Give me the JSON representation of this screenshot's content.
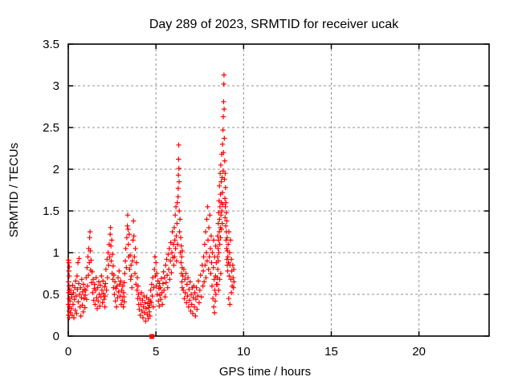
{
  "title": "Day 289 of 2023, SRMTID for receiver ucak",
  "colors": {
    "marker": "#ff0000",
    "grid": "#909090",
    "axis": "#000000",
    "background": "#ffffff"
  },
  "chart_data": {
    "type": "scatter",
    "title": "Day 289 of 2023, SRMTID for receiver ucak",
    "xlabel": "GPS time / hours",
    "ylabel": "SRMTID / TECUs",
    "xlim": [
      0,
      24
    ],
    "ylim": [
      0,
      3.5
    ],
    "xtick_values": [
      0,
      5,
      10,
      15,
      20
    ],
    "xtick_labels": [
      "0",
      "5",
      "10",
      "15",
      "20"
    ],
    "ytick_values": [
      0,
      0.5,
      1,
      1.5,
      2,
      2.5,
      3,
      3.5
    ],
    "ytick_labels": [
      "0",
      "0.5",
      "1",
      "1.5",
      "2",
      "2.5",
      "3",
      "3.5"
    ],
    "grid": true,
    "legend": "none",
    "marker": "plus",
    "square_points": [
      [
        4.77,
        0.0
      ]
    ],
    "points": [
      [
        0.01,
        0.25
      ],
      [
        0.01,
        0.38
      ],
      [
        0.02,
        0.52
      ],
      [
        0.02,
        0.65
      ],
      [
        0.03,
        0.78
      ],
      [
        0.03,
        0.88
      ],
      [
        0.04,
        0.3
      ],
      [
        0.04,
        0.45
      ],
      [
        0.05,
        0.6
      ],
      [
        0.05,
        0.72
      ],
      [
        0.06,
        0.83
      ],
      [
        0.06,
        0.22
      ],
      [
        0.07,
        0.35
      ],
      [
        0.07,
        0.55
      ],
      [
        0.02,
        0.91
      ],
      [
        0.1,
        0.42
      ],
      [
        0.12,
        0.28
      ],
      [
        0.15,
        0.55
      ],
      [
        0.17,
        0.33
      ],
      [
        0.2,
        0.47
      ],
      [
        0.22,
        0.25
      ],
      [
        0.25,
        0.61
      ],
      [
        0.27,
        0.38
      ],
      [
        0.3,
        0.52
      ],
      [
        0.32,
        0.22
      ],
      [
        0.35,
        0.44
      ],
      [
        0.37,
        0.58
      ],
      [
        0.4,
        0.31
      ],
      [
        0.42,
        0.66
      ],
      [
        0.45,
        0.48
      ],
      [
        0.47,
        0.27
      ],
      [
        0.5,
        0.72
      ],
      [
        0.52,
        0.56
      ],
      [
        0.55,
        0.88
      ],
      [
        0.57,
        0.41
      ],
      [
        0.6,
        0.63
      ],
      [
        0.62,
        0.93
      ],
      [
        0.65,
        0.5
      ],
      [
        0.67,
        0.35
      ],
      [
        0.7,
        0.58
      ],
      [
        0.72,
        0.24
      ],
      [
        0.75,
        0.46
      ],
      [
        0.77,
        0.68
      ],
      [
        0.8,
        0.37
      ],
      [
        0.82,
        0.53
      ],
      [
        0.85,
        0.29
      ],
      [
        0.87,
        0.62
      ],
      [
        0.9,
        0.45
      ],
      [
        0.92,
        0.56
      ],
      [
        0.95,
        0.34
      ],
      [
        0.97,
        0.49
      ],
      [
        1.0,
        0.55
      ],
      [
        1.02,
        0.7
      ],
      [
        1.05,
        0.44
      ],
      [
        1.07,
        0.82
      ],
      [
        1.1,
        0.6
      ],
      [
        1.12,
        0.95
      ],
      [
        1.15,
        0.73
      ],
      [
        1.17,
        1.05
      ],
      [
        1.2,
        0.88
      ],
      [
        1.22,
        1.18
      ],
      [
        1.24,
        1.25
      ],
      [
        1.26,
        1.02
      ],
      [
        1.28,
        0.79
      ],
      [
        1.3,
        0.91
      ],
      [
        1.33,
        0.64
      ],
      [
        1.36,
        0.77
      ],
      [
        1.39,
        0.52
      ],
      [
        1.42,
        0.68
      ],
      [
        1.45,
        0.43
      ],
      [
        1.48,
        0.57
      ],
      [
        1.5,
        0.62
      ],
      [
        1.53,
        0.38
      ],
      [
        1.56,
        0.55
      ],
      [
        1.59,
        0.7
      ],
      [
        1.62,
        0.46
      ],
      [
        1.65,
        0.33
      ],
      [
        1.68,
        0.58
      ],
      [
        1.71,
        0.42
      ],
      [
        1.74,
        0.65
      ],
      [
        1.77,
        0.5
      ],
      [
        1.8,
        0.36
      ],
      [
        1.83,
        0.61
      ],
      [
        1.86,
        0.47
      ],
      [
        1.89,
        0.72
      ],
      [
        1.92,
        0.55
      ],
      [
        1.95,
        0.4
      ],
      [
        1.98,
        0.66
      ],
      [
        2.01,
        0.51
      ],
      [
        2.04,
        0.44
      ],
      [
        2.07,
        0.59
      ],
      [
        2.09,
        0.35
      ],
      [
        2.1,
        0.48
      ],
      [
        2.12,
        0.63
      ],
      [
        2.15,
        0.8
      ],
      [
        2.18,
        0.55
      ],
      [
        2.21,
        0.92
      ],
      [
        2.24,
        0.7
      ],
      [
        2.27,
        1.0
      ],
      [
        2.3,
        0.85
      ],
      [
        2.33,
        1.1
      ],
      [
        2.36,
        0.95
      ],
      [
        2.39,
        1.22
      ],
      [
        2.41,
        1.3
      ],
      [
        2.43,
        1.08
      ],
      [
        2.45,
        0.9
      ],
      [
        2.48,
        1.15
      ],
      [
        2.5,
        0.75
      ],
      [
        2.52,
        0.98
      ],
      [
        2.54,
        0.68
      ],
      [
        2.56,
        0.84
      ],
      [
        2.58,
        0.58
      ],
      [
        2.6,
        0.73
      ],
      [
        2.63,
        0.5
      ],
      [
        2.66,
        0.65
      ],
      [
        2.69,
        0.42
      ],
      [
        2.72,
        0.57
      ],
      [
        2.75,
        0.35
      ],
      [
        2.78,
        0.6
      ],
      [
        2.81,
        0.46
      ],
      [
        2.84,
        0.7
      ],
      [
        2.87,
        0.53
      ],
      [
        2.9,
        0.78
      ],
      [
        2.93,
        0.62
      ],
      [
        2.96,
        0.48
      ],
      [
        2.99,
        0.66
      ],
      [
        3.02,
        0.38
      ],
      [
        3.05,
        0.55
      ],
      [
        3.08,
        0.43
      ],
      [
        3.11,
        0.6
      ],
      [
        3.14,
        0.35
      ],
      [
        3.16,
        0.52
      ],
      [
        3.18,
        0.47
      ],
      [
        3.19,
        0.64
      ],
      [
        3.2,
        0.41
      ],
      [
        3.22,
        0.75
      ],
      [
        3.25,
        0.9
      ],
      [
        3.28,
        1.05
      ],
      [
        3.31,
        0.82
      ],
      [
        3.34,
        1.18
      ],
      [
        3.37,
        1.32
      ],
      [
        3.39,
        1.45
      ],
      [
        3.41,
        1.28
      ],
      [
        3.43,
        1.1
      ],
      [
        3.45,
        0.95
      ],
      [
        3.47,
        1.22
      ],
      [
        3.5,
        0.8
      ],
      [
        3.53,
        0.97
      ],
      [
        3.56,
        0.68
      ],
      [
        3.58,
        0.85
      ],
      [
        3.6,
        0.72
      ],
      [
        3.63,
        0.58
      ],
      [
        3.66,
        0.9
      ],
      [
        3.69,
        1.15
      ],
      [
        3.72,
        1.38
      ],
      [
        3.74,
        1.2
      ],
      [
        3.77,
        0.95
      ],
      [
        3.8,
        0.75
      ],
      [
        3.83,
        1.05
      ],
      [
        3.86,
        0.62
      ],
      [
        3.89,
        0.88
      ],
      [
        3.92,
        0.55
      ],
      [
        3.94,
        0.7
      ],
      [
        3.96,
        0.45
      ],
      [
        3.98,
        0.6
      ],
      [
        4.0,
        0.5
      ],
      [
        4.02,
        0.38
      ],
      [
        4.05,
        0.32
      ],
      [
        4.08,
        0.45
      ],
      [
        4.11,
        0.25
      ],
      [
        4.14,
        0.38
      ],
      [
        4.17,
        0.52
      ],
      [
        4.2,
        0.3
      ],
      [
        4.23,
        0.43
      ],
      [
        4.26,
        0.22
      ],
      [
        4.29,
        0.35
      ],
      [
        4.32,
        0.48
      ],
      [
        4.35,
        0.28
      ],
      [
        4.38,
        0.4
      ],
      [
        4.41,
        0.18
      ],
      [
        4.44,
        0.33
      ],
      [
        4.47,
        0.46
      ],
      [
        4.5,
        0.26
      ],
      [
        4.53,
        0.39
      ],
      [
        4.56,
        0.21
      ],
      [
        4.58,
        0.34
      ],
      [
        4.6,
        0.44
      ],
      [
        4.62,
        0.29
      ],
      [
        4.64,
        0.37
      ],
      [
        4.66,
        0.24
      ],
      [
        4.68,
        0.42
      ],
      [
        4.7,
        0.55
      ],
      [
        4.73,
        0.4
      ],
      [
        4.76,
        0.62
      ],
      [
        4.79,
        0.48
      ],
      [
        4.82,
        0.7
      ],
      [
        4.85,
        0.35
      ],
      [
        4.88,
        0.58
      ],
      [
        4.91,
        0.8
      ],
      [
        4.94,
        0.95
      ],
      [
        4.97,
        0.72
      ],
      [
        5.0,
        0.88
      ],
      [
        5.02,
        0.6
      ],
      [
        5.05,
        0.75
      ],
      [
        5.08,
        0.5
      ],
      [
        5.11,
        0.66
      ],
      [
        5.14,
        0.42
      ],
      [
        5.17,
        0.57
      ],
      [
        5.19,
        0.36
      ],
      [
        5.2,
        0.63
      ],
      [
        5.22,
        0.49
      ],
      [
        5.25,
        0.58
      ],
      [
        5.28,
        0.44
      ],
      [
        5.31,
        0.69
      ],
      [
        5.34,
        0.52
      ],
      [
        5.37,
        0.38
      ],
      [
        5.4,
        0.63
      ],
      [
        5.43,
        0.77
      ],
      [
        5.46,
        0.55
      ],
      [
        5.49,
        0.7
      ],
      [
        5.52,
        0.47
      ],
      [
        5.55,
        0.85
      ],
      [
        5.58,
        0.64
      ],
      [
        5.61,
        0.92
      ],
      [
        5.64,
        0.73
      ],
      [
        5.67,
        0.58
      ],
      [
        5.7,
        0.98
      ],
      [
        5.73,
        0.8
      ],
      [
        5.76,
        1.05
      ],
      [
        5.79,
        0.68
      ],
      [
        5.82,
        0.9
      ],
      [
        5.85,
        1.12
      ],
      [
        5.88,
        0.76
      ],
      [
        5.91,
        1.0
      ],
      [
        5.94,
        1.25
      ],
      [
        5.97,
        0.94
      ],
      [
        6.0,
        1.1
      ],
      [
        6.02,
        0.85
      ],
      [
        6.04,
        1.3
      ],
      [
        6.06,
        0.95
      ],
      [
        6.08,
        1.15
      ],
      [
        6.1,
        1.45
      ],
      [
        6.12,
        1.05
      ],
      [
        6.14,
        1.55
      ],
      [
        6.16,
        1.2
      ],
      [
        6.18,
        0.9
      ],
      [
        6.2,
        1.35
      ],
      [
        6.22,
        1.6
      ],
      [
        6.24,
        1.1
      ],
      [
        6.26,
        1.67
      ],
      [
        6.27,
        1.77
      ],
      [
        6.28,
        1.93
      ],
      [
        6.29,
        2.12
      ],
      [
        6.3,
        2.29
      ],
      [
        6.31,
        2.01
      ],
      [
        6.32,
        1.85
      ],
      [
        6.33,
        1.5
      ],
      [
        6.35,
        1.25
      ],
      [
        6.37,
        1.4
      ],
      [
        6.39,
        1.0
      ],
      [
        6.41,
        1.18
      ],
      [
        6.43,
        0.88
      ],
      [
        6.45,
        1.08
      ],
      [
        6.46,
        0.75
      ],
      [
        6.47,
        0.95
      ],
      [
        6.48,
        0.65
      ],
      [
        6.49,
        0.82
      ],
      [
        6.5,
        0.58
      ],
      [
        6.5,
        1.02
      ],
      [
        6.53,
        0.72
      ],
      [
        6.56,
        0.55
      ],
      [
        6.59,
        0.8
      ],
      [
        6.62,
        0.45
      ],
      [
        6.65,
        0.68
      ],
      [
        6.68,
        0.52
      ],
      [
        6.71,
        0.75
      ],
      [
        6.74,
        0.4
      ],
      [
        6.77,
        0.62
      ],
      [
        6.8,
        0.48
      ],
      [
        6.83,
        0.7
      ],
      [
        6.86,
        0.35
      ],
      [
        6.89,
        0.56
      ],
      [
        6.92,
        0.43
      ],
      [
        6.95,
        0.65
      ],
      [
        6.98,
        0.3
      ],
      [
        7.01,
        0.5
      ],
      [
        7.04,
        0.38
      ],
      [
        7.07,
        0.58
      ],
      [
        7.1,
        0.27
      ],
      [
        7.13,
        0.46
      ],
      [
        7.16,
        0.6
      ],
      [
        7.19,
        0.35
      ],
      [
        7.22,
        0.52
      ],
      [
        7.25,
        0.24
      ],
      [
        7.28,
        0.44
      ],
      [
        7.31,
        0.58
      ],
      [
        7.34,
        0.32
      ],
      [
        7.38,
        0.48
      ],
      [
        7.42,
        0.66
      ],
      [
        7.46,
        0.4
      ],
      [
        7.5,
        0.55
      ],
      [
        7.55,
        0.73
      ],
      [
        7.6,
        0.47
      ],
      [
        7.64,
        0.85
      ],
      [
        7.68,
        0.6
      ],
      [
        7.7,
        0.78
      ],
      [
        7.72,
        0.95
      ],
      [
        7.75,
        0.65
      ],
      [
        7.78,
        1.1
      ],
      [
        7.8,
        0.85
      ],
      [
        7.83,
        1.25
      ],
      [
        7.85,
        0.7
      ],
      [
        7.88,
        1.0
      ],
      [
        7.9,
        1.4
      ],
      [
        7.92,
        0.9
      ],
      [
        7.95,
        1.55
      ],
      [
        7.97,
        1.15
      ],
      [
        8.0,
        0.8
      ],
      [
        8.02,
        1.3
      ],
      [
        8.05,
        0.95
      ],
      [
        8.07,
        1.45
      ],
      [
        8.1,
        1.05
      ],
      [
        8.12,
        0.75
      ],
      [
        8.15,
        1.2
      ],
      [
        8.17,
        0.88
      ],
      [
        8.2,
        0.6
      ],
      [
        8.22,
        1.0
      ],
      [
        8.25,
        0.45
      ],
      [
        8.27,
        0.82
      ],
      [
        8.3,
        0.35
      ],
      [
        8.32,
        0.68
      ],
      [
        8.34,
        0.28
      ],
      [
        8.36,
        0.55
      ],
      [
        8.38,
        0.42
      ],
      [
        8.4,
        0.72
      ],
      [
        8.42,
        0.5
      ],
      [
        8.44,
        0.88
      ],
      [
        8.45,
        0.62
      ],
      [
        8.41,
        1.08
      ],
      [
        8.35,
        0.95
      ],
      [
        8.29,
        1.15
      ],
      [
        8.5,
        0.7
      ],
      [
        8.51,
        0.95
      ],
      [
        8.52,
        1.2
      ],
      [
        8.53,
        0.8
      ],
      [
        8.54,
        1.05
      ],
      [
        8.55,
        1.35
      ],
      [
        8.56,
        0.9
      ],
      [
        8.57,
        1.15
      ],
      [
        8.58,
        1.48
      ],
      [
        8.59,
        1.0
      ],
      [
        8.6,
        1.62
      ],
      [
        8.61,
        1.25
      ],
      [
        8.62,
        1.8
      ],
      [
        8.63,
        1.4
      ],
      [
        8.64,
        1.1
      ],
      [
        8.65,
        1.55
      ],
      [
        8.66,
        1.95
      ],
      [
        8.67,
        1.3
      ],
      [
        8.68,
        1.7
      ],
      [
        8.69,
        1.18
      ],
      [
        8.7,
        2.05
      ],
      [
        8.71,
        1.45
      ],
      [
        8.72,
        1.85
      ],
      [
        8.73,
        1.6
      ],
      [
        8.74,
        1.28
      ],
      [
        8.75,
        2.18
      ],
      [
        8.76,
        1.5
      ],
      [
        8.77,
        1.9
      ],
      [
        8.78,
        1.35
      ],
      [
        8.79,
        1.72
      ],
      [
        8.8,
        2.3
      ],
      [
        8.81,
        1.58
      ],
      [
        8.82,
        2.47
      ],
      [
        8.83,
        1.98
      ],
      [
        8.84,
        2.63
      ],
      [
        8.85,
        2.2
      ],
      [
        8.86,
        2.81
      ],
      [
        8.87,
        3.02
      ],
      [
        8.88,
        3.13
      ],
      [
        8.89,
        2.72
      ],
      [
        8.9,
        2.37
      ],
      [
        8.91,
        1.88
      ],
      [
        8.92,
        2.1
      ],
      [
        8.93,
        1.65
      ],
      [
        8.94,
        1.42
      ],
      [
        8.95,
        1.95
      ],
      [
        8.96,
        1.55
      ],
      [
        8.97,
        1.78
      ],
      [
        8.98,
        1.32
      ],
      [
        8.99,
        1.6
      ],
      [
        9.0,
        1.15
      ],
      [
        9.01,
        1.48
      ],
      [
        9.02,
        1.25
      ],
      [
        9.03,
        1.05
      ],
      [
        9.04,
        1.38
      ],
      [
        9.05,
        0.92
      ],
      [
        9.06,
        1.18
      ],
      [
        9.07,
        0.85
      ],
      [
        9.08,
        1.02
      ],
      [
        9.09,
        0.78
      ],
      [
        9.1,
        0.95
      ],
      [
        8.52,
        0.62
      ],
      [
        8.58,
        0.55
      ],
      [
        8.64,
        0.68
      ],
      [
        8.7,
        0.75
      ],
      [
        9.12,
        1.1
      ],
      [
        9.14,
        0.88
      ],
      [
        9.16,
        1.25
      ],
      [
        9.18,
        0.72
      ],
      [
        9.2,
        1.0
      ],
      [
        9.22,
        0.85
      ],
      [
        9.25,
        1.15
      ],
      [
        9.27,
        0.68
      ],
      [
        9.3,
        0.92
      ],
      [
        9.32,
        0.78
      ],
      [
        9.35,
        0.6
      ],
      [
        9.38,
        0.85
      ],
      [
        9.4,
        0.7
      ],
      [
        9.42,
        0.58
      ],
      [
        9.44,
        0.8
      ],
      [
        9.45,
        0.65
      ],
      [
        9.15,
        0.45
      ],
      [
        9.22,
        0.38
      ],
      [
        9.3,
        0.52
      ]
    ]
  }
}
